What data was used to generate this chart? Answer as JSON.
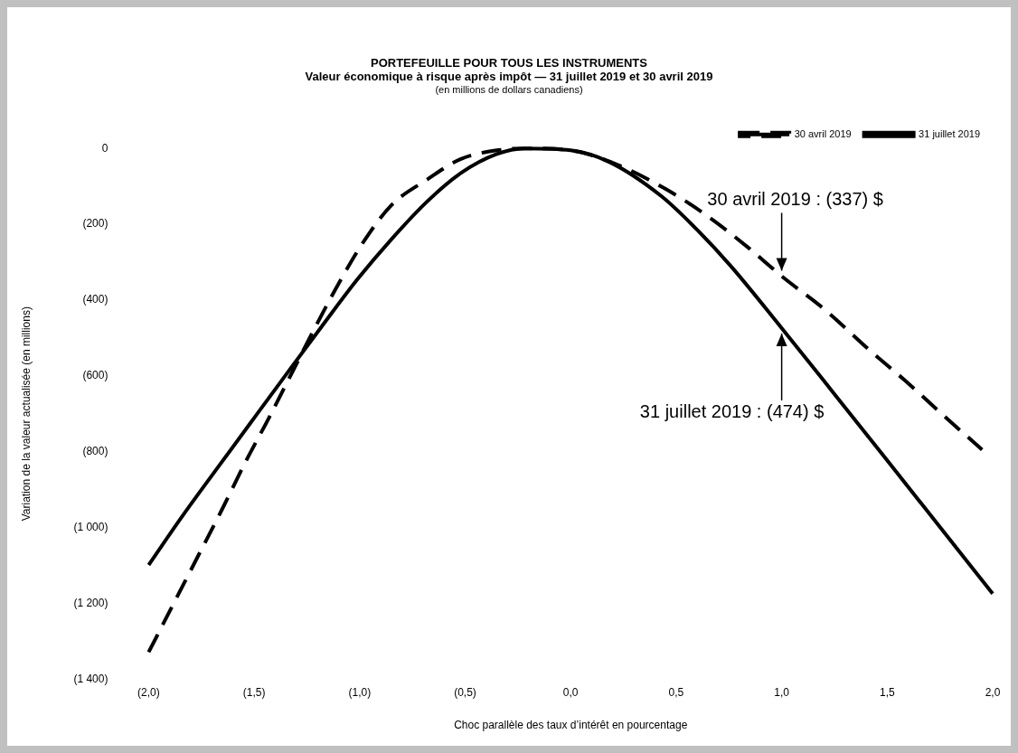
{
  "chart_data": {
    "type": "line",
    "title": "PORTEFEUILLE POUR TOUS LES INSTRUMENTS",
    "subtitle": "Valeur économique à risque après impôt — 31 juillet 2019 et 30 avril 2019\n(en millions de dollars canadiens)",
    "xlabel": "Choc parallèle des taux d’intérêt en pourcentage",
    "ylabel": "Variation de la valeur actualisée (en millions)",
    "xlim": [
      -2,
      2
    ],
    "xticks": [
      {
        "value": -2,
        "label": "(2,0)"
      },
      {
        "value": -1.5,
        "label": "(1,5)"
      },
      {
        "value": -1,
        "label": "(1,0)"
      },
      {
        "value": -0.5,
        "label": "(0,5)"
      },
      {
        "value": 0,
        "label": "0,0"
      },
      {
        "value": 0.5,
        "label": "0,5"
      },
      {
        "value": 1,
        "label": "1,0"
      },
      {
        "value": 1.5,
        "label": "1,5"
      },
      {
        "value": 2,
        "label": "2,0"
      }
    ],
    "ylim": [
      -1400,
      0
    ],
    "yticks": [
      {
        "value": 0,
        "label": "0"
      },
      {
        "value": -200,
        "label": "(200)"
      },
      {
        "value": -400,
        "label": "(400)"
      },
      {
        "value": -600,
        "label": "(600)"
      },
      {
        "value": -800,
        "label": "(800)"
      },
      {
        "value": -1000,
        "label": "(1 000)"
      },
      {
        "value": -1200,
        "label": "(1 200)"
      },
      {
        "value": -1400,
        "label": "(1 400)"
      }
    ],
    "grid": false,
    "legend": "top right",
    "marker": "none",
    "series": [
      {
        "name": "30 avril 2019",
        "color": "#000000",
        "line_style": "dashed",
        "x": [
          -2,
          -1.88,
          -1.77,
          -1.65,
          -1.54,
          -1.43,
          -1.32,
          -1.21,
          -1.09,
          -0.98,
          -0.85,
          -0.68,
          -0.52,
          -0.35,
          -0.2,
          0,
          0.23,
          0.45,
          0.65,
          0.84,
          1,
          1.21,
          1.41,
          1.59,
          1.77,
          1.95
        ],
        "values": [
          -1329,
          -1199,
          -1080,
          -950,
          -826,
          -711,
          -591,
          -471,
          -347,
          -245,
          -150,
          -82,
          -28,
          -5,
          0,
          -5,
          -45,
          -107,
          -179,
          -261,
          -337,
          -428,
          -529,
          -615,
          -706,
          -795
        ]
      },
      {
        "name": "31 juillet 2019",
        "color": "#000000",
        "line_style": "solid",
        "x": [
          -2,
          -1.84,
          -1.67,
          -1.5,
          -1.34,
          -1.18,
          -1.01,
          -0.85,
          -0.68,
          -0.52,
          -0.35,
          -0.22,
          0,
          0.18,
          0.43,
          0.6,
          0.76,
          1,
          1.25,
          1.5,
          1.75,
          2
        ],
        "values": [
          -1099,
          -970,
          -840,
          -711,
          -590,
          -470,
          -345,
          -240,
          -140,
          -65,
          -15,
          0,
          -5,
          -35,
          -126,
          -215,
          -311,
          -474,
          -648,
          -823,
          -999,
          -1175
        ]
      }
    ],
    "annotations": [
      {
        "text": "30 avril 2019 : (337) $",
        "x": 1,
        "y": -337
      },
      {
        "text": "31 juillet 2019 : (474) $",
        "x": 1,
        "y": -474
      }
    ]
  }
}
